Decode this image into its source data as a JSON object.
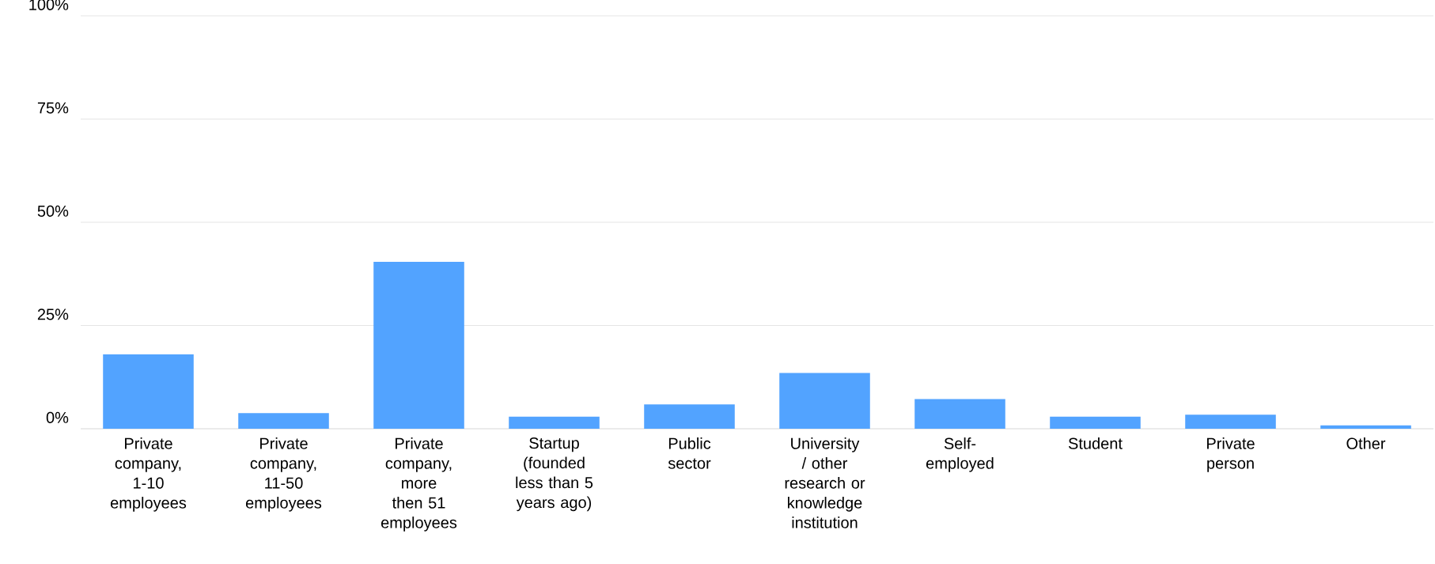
{
  "chart_data": {
    "type": "bar",
    "categories": [
      "Private company, 1-10 employees",
      "Private company, 11-50 employees",
      "Private company, more then 51 employees",
      "Startup (founded less than 5 years ago)",
      "Public sector",
      "University / other research or knowledge institution",
      "Self-employed",
      "Student",
      "Private person",
      "Other"
    ],
    "values": [
      18.0,
      3.8,
      40.4,
      2.9,
      5.9,
      13.5,
      7.2,
      2.9,
      3.4,
      0.8
    ],
    "color": "#52a3ff",
    "ylim": [
      0,
      100
    ],
    "yticks": [
      {
        "value": 0,
        "label": "0%"
      },
      {
        "value": 25,
        "label": "25%"
      },
      {
        "value": 50,
        "label": "50%"
      },
      {
        "value": 75,
        "label": "75%"
      },
      {
        "value": 100,
        "label": "100%"
      }
    ],
    "grid": "y"
  }
}
